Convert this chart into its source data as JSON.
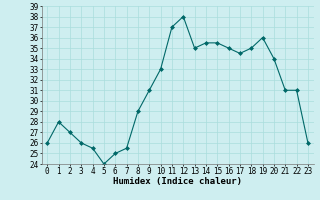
{
  "x": [
    0,
    1,
    2,
    3,
    4,
    5,
    6,
    7,
    8,
    9,
    10,
    11,
    12,
    13,
    14,
    15,
    16,
    17,
    18,
    19,
    20,
    21,
    22,
    23
  ],
  "y": [
    26,
    28,
    27,
    26,
    25.5,
    24,
    25,
    25.5,
    29,
    31,
    33,
    37,
    38,
    35,
    35.5,
    35.5,
    35,
    34.5,
    35,
    36,
    34,
    31,
    31,
    26
  ],
  "line_color": "#006868",
  "marker_color": "#006868",
  "bg_color": "#ceeef0",
  "grid_color": "#aadddd",
  "xlabel": "Humidex (Indice chaleur)",
  "ylim": [
    24,
    39
  ],
  "xlim": [
    -0.5,
    23.5
  ],
  "yticks": [
    24,
    25,
    26,
    27,
    28,
    29,
    30,
    31,
    32,
    33,
    34,
    35,
    36,
    37,
    38,
    39
  ],
  "xticks": [
    0,
    1,
    2,
    3,
    4,
    5,
    6,
    7,
    8,
    9,
    10,
    11,
    12,
    13,
    14,
    15,
    16,
    17,
    18,
    19,
    20,
    21,
    22,
    23
  ],
  "tick_fontsize": 5.5,
  "label_fontsize": 6.5
}
